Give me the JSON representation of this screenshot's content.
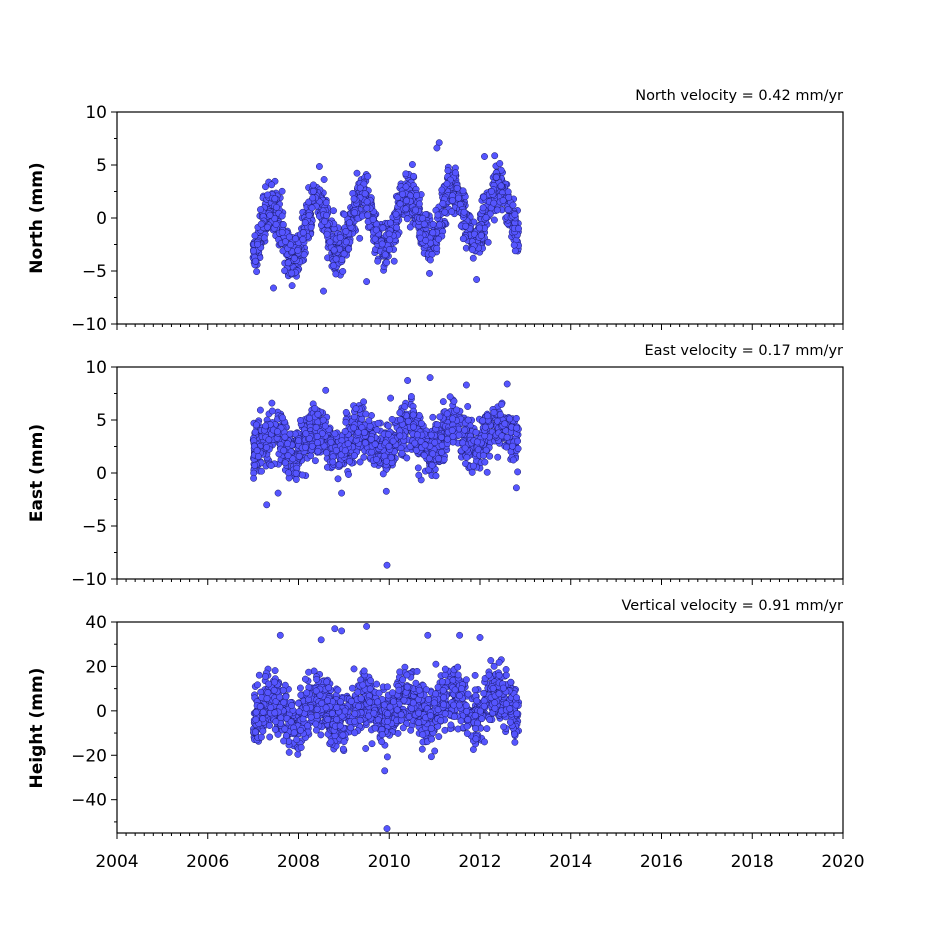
{
  "chart_data": [
    {
      "type": "scatter",
      "title": "North velocity = 0.42 mm/yr",
      "ylabel": "North (mm)",
      "xlim": [
        2004,
        2020
      ],
      "ylim": [
        -10,
        10
      ],
      "x_ticks": [
        2004,
        2006,
        2008,
        2010,
        2012,
        2014,
        2016,
        2018,
        2020
      ],
      "y_ticks": [
        -10,
        -5,
        0,
        5,
        10
      ],
      "y_tick_labels": [
        "−10",
        "−5",
        "0",
        "5",
        "10"
      ],
      "grid": false,
      "marker_color": "#5555ff",
      "marker_edge": "#1a1a66",
      "series": [
        {
          "x_range": [
            2007.0,
            2012.85
          ],
          "mean": -0.3,
          "trend": 0.42,
          "annual_amplitude": 2.5,
          "noise": 1.1,
          "outliers": [
            [
              2007.45,
              -6.6
            ],
            [
              2008.55,
              -6.9
            ],
            [
              2009.5,
              -6.0
            ],
            [
              2011.1,
              7.1
            ],
            [
              2011.05,
              6.6
            ],
            [
              2012.1,
              5.8
            ],
            [
              2007.85,
              -5.2
            ]
          ]
        }
      ]
    },
    {
      "type": "scatter",
      "title": "East velocity = 0.17 mm/yr",
      "ylabel": "East (mm)",
      "xlim": [
        2004,
        2020
      ],
      "ylim": [
        -10,
        10
      ],
      "x_ticks": [
        2004,
        2006,
        2008,
        2010,
        2012,
        2014,
        2016,
        2018,
        2020
      ],
      "y_ticks": [
        -10,
        -5,
        0,
        5,
        10
      ],
      "y_tick_labels": [
        "−10",
        "−5",
        "0",
        "5",
        "10"
      ],
      "grid": false,
      "marker_color": "#5555ff",
      "marker_edge": "#1a1a66",
      "series": [
        {
          "x_range": [
            2007.0,
            2012.85
          ],
          "mean": 3.2,
          "trend": 0.17,
          "annual_amplitude": 1.0,
          "noise": 1.2,
          "outliers": [
            [
              2009.95,
              -8.7
            ],
            [
              2007.3,
              -3.0
            ],
            [
              2007.55,
              -1.9
            ],
            [
              2010.9,
              9.0
            ],
            [
              2008.6,
              7.8
            ],
            [
              2011.7,
              8.3
            ],
            [
              2012.6,
              8.4
            ],
            [
              2008.95,
              -1.9
            ]
          ]
        }
      ]
    },
    {
      "type": "scatter",
      "title": "Vertical velocity = 0.91 mm/yr",
      "ylabel": "Height (mm)",
      "xlim": [
        2004,
        2020
      ],
      "ylim": [
        -55,
        40
      ],
      "x_ticks": [
        2004,
        2006,
        2008,
        2010,
        2012,
        2014,
        2016,
        2018,
        2020
      ],
      "x_tick_labels": [
        "2004",
        "2006",
        "2008",
        "2010",
        "2012",
        "2014",
        "2016",
        "2018",
        "2020"
      ],
      "y_ticks": [
        -40,
        -20,
        0,
        20,
        40
      ],
      "y_tick_labels": [
        "−40",
        "−20",
        "0",
        "20",
        "40"
      ],
      "grid": false,
      "marker_color": "#5555ff",
      "marker_edge": "#1a1a66",
      "series": [
        {
          "x_range": [
            2007.0,
            2012.85
          ],
          "mean": 1.0,
          "trend": 0.91,
          "annual_amplitude": 5.0,
          "noise": 6.5,
          "outliers": [
            [
              2009.95,
              -53
            ],
            [
              2009.5,
              38
            ],
            [
              2008.95,
              36
            ],
            [
              2008.8,
              37
            ],
            [
              2008.5,
              32
            ],
            [
              2010.85,
              34
            ],
            [
              2011.55,
              34
            ],
            [
              2012.0,
              33
            ],
            [
              2007.6,
              34
            ],
            [
              2009.9,
              -27
            ],
            [
              2012.1,
              -14
            ]
          ]
        }
      ]
    }
  ]
}
